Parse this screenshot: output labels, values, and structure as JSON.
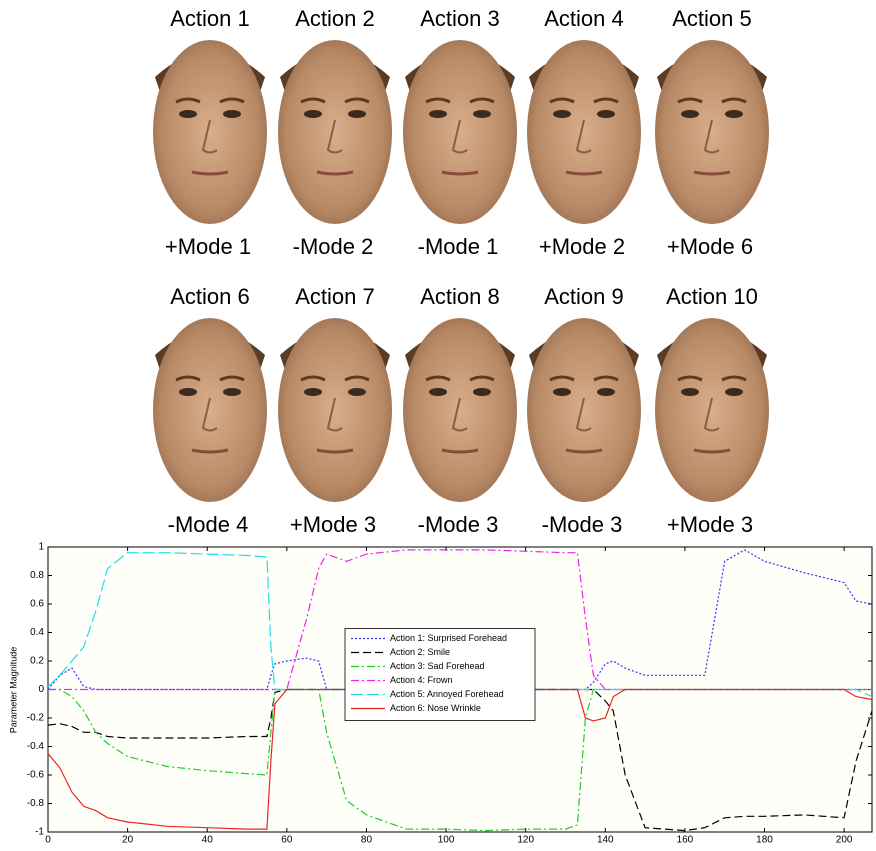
{
  "faces": [
    {
      "action": "Action 1",
      "mode": "+Mode 1"
    },
    {
      "action": "Action 2",
      "mode": "-Mode 2"
    },
    {
      "action": "Action 3",
      "mode": "-Mode 1"
    },
    {
      "action": "Action 4",
      "mode": "+Mode 2"
    },
    {
      "action": "Action 5",
      "mode": "+Mode 6"
    },
    {
      "action": "Action 6",
      "mode": "-Mode 4"
    },
    {
      "action": "Action 7",
      "mode": "+Mode 3"
    },
    {
      "action": "Action 8",
      "mode": "-Mode 3"
    },
    {
      "action": "Action 9",
      "mode": "-Mode 3"
    },
    {
      "action": "Action 10",
      "mode": "+Mode 3"
    }
  ],
  "chart_data": {
    "type": "line",
    "ylabel": "Parameter Magnitude",
    "x": [
      0,
      3,
      6,
      9,
      12,
      15,
      20,
      30,
      40,
      50,
      55,
      56,
      57,
      60,
      65,
      68,
      70,
      75,
      80,
      90,
      100,
      110,
      120,
      130,
      133,
      135,
      137,
      140,
      142,
      145,
      150,
      160,
      165,
      170,
      175,
      180,
      190,
      200,
      203,
      207
    ],
    "series": [
      {
        "name": "Action 1: Surprised Forehead",
        "color": "#3333ff",
        "style": "dotted",
        "values": [
          0,
          0.1,
          0.15,
          0.02,
          0,
          0,
          0,
          0,
          0,
          0,
          0,
          0.1,
          0.18,
          0.2,
          0.22,
          0.2,
          0,
          0,
          0,
          0,
          0,
          0,
          0,
          0,
          0,
          0,
          0.05,
          0.18,
          0.2,
          0.15,
          0.1,
          0.1,
          0.1,
          0.9,
          0.98,
          0.9,
          0.82,
          0.75,
          0.62,
          0.6
        ]
      },
      {
        "name": "Action 2: Smile",
        "color": "#000000",
        "style": "dashed",
        "values": [
          -0.25,
          -0.24,
          -0.26,
          -0.3,
          -0.3,
          -0.33,
          -0.34,
          -0.34,
          -0.34,
          -0.33,
          -0.33,
          -0.2,
          -0.02,
          0,
          0,
          0,
          0,
          0,
          0,
          0,
          0,
          0,
          0,
          0,
          0,
          0,
          0,
          -0.08,
          -0.15,
          -0.6,
          -0.97,
          -0.99,
          -0.97,
          -0.9,
          -0.89,
          -0.89,
          -0.88,
          -0.9,
          -0.5,
          -0.15
        ]
      },
      {
        "name": "Action 3: Sad Forehead",
        "color": "#22cc22",
        "style": "dashdot",
        "values": [
          0,
          0,
          -0.05,
          -0.15,
          -0.3,
          -0.38,
          -0.47,
          -0.54,
          -0.57,
          -0.59,
          -0.6,
          -0.3,
          0,
          0,
          0,
          0,
          -0.3,
          -0.78,
          -0.88,
          -0.98,
          -0.98,
          -0.99,
          -0.98,
          -0.98,
          -0.95,
          -0.2,
          0,
          0,
          0,
          0,
          0,
          0,
          0,
          0,
          0,
          0,
          0,
          0,
          0,
          0
        ]
      },
      {
        "name": "Action 4: Frown",
        "color": "#ee22ee",
        "style": "dashdot",
        "values": [
          0,
          0,
          0,
          0,
          0,
          0,
          0,
          0,
          0,
          0,
          0,
          0,
          0,
          0,
          0.5,
          0.85,
          0.95,
          0.9,
          0.95,
          0.98,
          0.98,
          0.98,
          0.97,
          0.96,
          0.96,
          0.5,
          0.1,
          0,
          0,
          0,
          0,
          0,
          0,
          0,
          0,
          0,
          0,
          0,
          0,
          0
        ]
      },
      {
        "name": "Action 5: Annoyed Forehead",
        "color": "#22ddee",
        "style": "longdash",
        "values": [
          0.02,
          0.1,
          0.2,
          0.3,
          0.55,
          0.85,
          0.96,
          0.96,
          0.95,
          0.94,
          0.93,
          0.3,
          0,
          0,
          0,
          0,
          0,
          0,
          0,
          0,
          0,
          0,
          0,
          0,
          0,
          0,
          0,
          0,
          0,
          0,
          0,
          0,
          0,
          0,
          0,
          0,
          0,
          0,
          0,
          -0.05
        ]
      },
      {
        "name": "Action 6: Nose Wrinkle",
        "color": "#ee2222",
        "style": "solid",
        "values": [
          -0.45,
          -0.55,
          -0.72,
          -0.82,
          -0.85,
          -0.9,
          -0.93,
          -0.96,
          -0.97,
          -0.98,
          -0.98,
          -0.5,
          -0.1,
          0,
          0,
          0,
          0,
          0,
          0,
          0,
          0,
          0,
          0,
          0,
          0,
          -0.2,
          -0.22,
          -0.2,
          -0.05,
          0,
          0,
          0,
          0,
          0,
          0,
          0,
          0,
          0,
          -0.05,
          -0.07
        ]
      }
    ],
    "xlim": [
      0,
      207
    ],
    "xticks": [
      0,
      20,
      40,
      60,
      80,
      100,
      120,
      140,
      160,
      180,
      200
    ],
    "ylim": [
      -1,
      1
    ],
    "yticks": [
      -1,
      -0.8,
      -0.6,
      -0.4,
      -0.2,
      0,
      0.2,
      0.4,
      0.6,
      0.8,
      1
    ],
    "legend": "center"
  }
}
